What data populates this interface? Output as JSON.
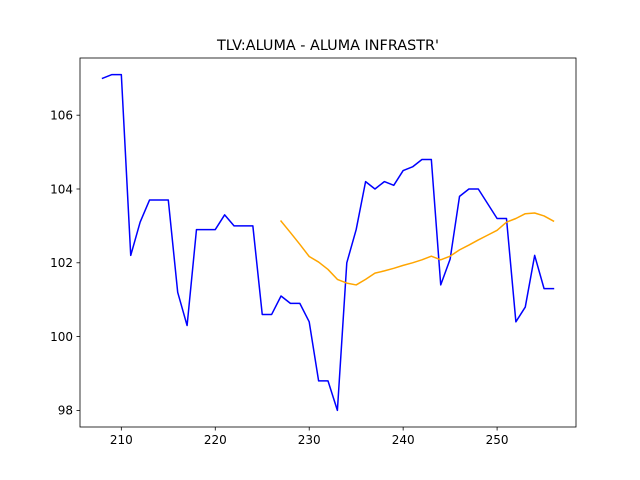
{
  "chart_data": {
    "type": "line",
    "title": "TLV:ALUMA - ALUMA INFRASTR'",
    "xlabel": "",
    "ylabel": "",
    "xlim": [
      205.6,
      258.4
    ],
    "ylim": [
      97.55,
      107.55
    ],
    "xticks": [
      210,
      220,
      230,
      240,
      250
    ],
    "yticks": [
      98,
      100,
      102,
      104,
      106
    ],
    "grid": false,
    "series": [
      {
        "color": "#0000ff",
        "points": [
          [
            208,
            107.0
          ],
          [
            209,
            107.1
          ],
          [
            210,
            107.1
          ],
          [
            211,
            102.2
          ],
          [
            212,
            103.1
          ],
          [
            213,
            103.7
          ],
          [
            214,
            103.7
          ],
          [
            215,
            103.7
          ],
          [
            216,
            101.2
          ],
          [
            217,
            100.3
          ],
          [
            218,
            102.9
          ],
          [
            219,
            102.9
          ],
          [
            220,
            102.9
          ],
          [
            221,
            103.3
          ],
          [
            222,
            103.0
          ],
          [
            223,
            103.0
          ],
          [
            224,
            103.0
          ],
          [
            225,
            100.6
          ],
          [
            226,
            100.6
          ],
          [
            227,
            101.1
          ],
          [
            228,
            100.9
          ],
          [
            229,
            100.9
          ],
          [
            230,
            100.4
          ],
          [
            231,
            98.8
          ],
          [
            232,
            98.8
          ],
          [
            233,
            98.0
          ],
          [
            234,
            102.0
          ],
          [
            235,
            102.9
          ],
          [
            236,
            104.2
          ],
          [
            237,
            104.0
          ],
          [
            238,
            104.2
          ],
          [
            239,
            104.1
          ],
          [
            240,
            104.5
          ],
          [
            241,
            104.6
          ],
          [
            242,
            104.8
          ],
          [
            243,
            104.8
          ],
          [
            244,
            101.4
          ],
          [
            245,
            102.1
          ],
          [
            246,
            103.8
          ],
          [
            247,
            104.0
          ],
          [
            248,
            104.0
          ],
          [
            249,
            103.6
          ],
          [
            250,
            103.2
          ],
          [
            251,
            103.2
          ],
          [
            252,
            100.4
          ],
          [
            253,
            100.8
          ],
          [
            254,
            102.2
          ],
          [
            255,
            101.3
          ],
          [
            256,
            101.3
          ]
        ]
      },
      {
        "color": "#ffa500",
        "points": [
          [
            227,
            103.13
          ],
          [
            228,
            102.82
          ],
          [
            229,
            102.5
          ],
          [
            230,
            102.17
          ],
          [
            231,
            102.02
          ],
          [
            232,
            101.82
          ],
          [
            233,
            101.55
          ],
          [
            234,
            101.45
          ],
          [
            235,
            101.4
          ],
          [
            236,
            101.55
          ],
          [
            237,
            101.72
          ],
          [
            238,
            101.78
          ],
          [
            239,
            101.85
          ],
          [
            240,
            101.93
          ],
          [
            241,
            102.0
          ],
          [
            242,
            102.08
          ],
          [
            243,
            102.18
          ],
          [
            244,
            102.08
          ],
          [
            245,
            102.18
          ],
          [
            246,
            102.35
          ],
          [
            247,
            102.48
          ],
          [
            248,
            102.62
          ],
          [
            249,
            102.75
          ],
          [
            250,
            102.88
          ],
          [
            251,
            103.1
          ],
          [
            252,
            103.2
          ],
          [
            253,
            103.33
          ],
          [
            254,
            103.35
          ],
          [
            255,
            103.27
          ],
          [
            256,
            103.13
          ]
        ]
      }
    ]
  }
}
